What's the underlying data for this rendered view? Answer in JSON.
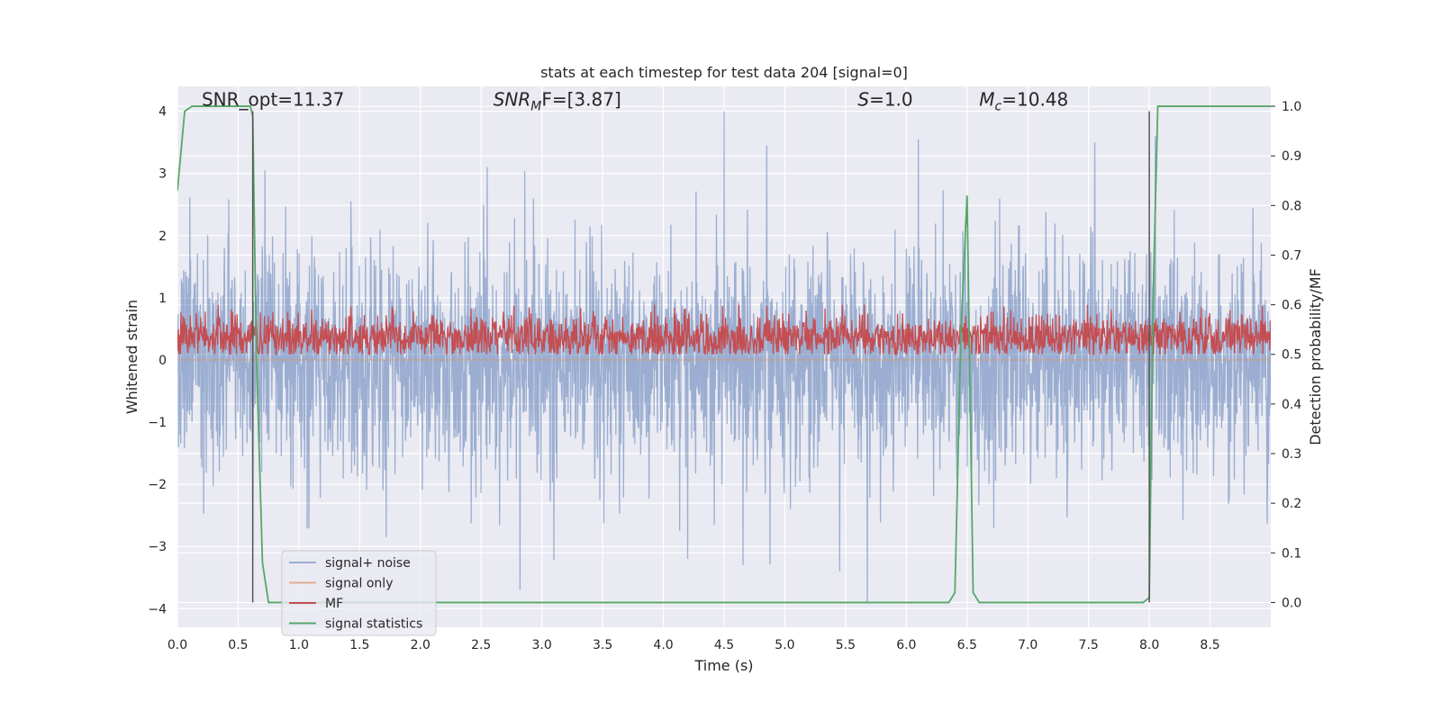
{
  "chart_data": {
    "type": "line",
    "title": "stats at each timestep for test data 204 [signal=0]",
    "xlabel": "Time (s)",
    "ylabel_left": "Whitened strain",
    "ylabel_right": "Detection probability/MF",
    "xlim": [
      0,
      9.0
    ],
    "ylim_left": [
      -4.3,
      4.4
    ],
    "ylim_right": [
      -0.05,
      1.04
    ],
    "x_ticks": [
      "0.0",
      "0.5",
      "1.0",
      "1.5",
      "2.0",
      "2.5",
      "3.0",
      "3.5",
      "4.0",
      "4.5",
      "5.0",
      "5.5",
      "6.0",
      "6.5",
      "7.0",
      "7.5",
      "8.0",
      "8.5"
    ],
    "y_ticks_left": [
      "−4",
      "−3",
      "−2",
      "−1",
      "0",
      "1",
      "2",
      "3",
      "4"
    ],
    "y_ticks_right": [
      "0.0",
      "0.1",
      "0.2",
      "0.3",
      "0.4",
      "0.5",
      "0.6",
      "0.7",
      "0.8",
      "0.9",
      "1.0"
    ],
    "grid": true,
    "legend_position": "lower-left",
    "annotations": [
      {
        "text": "SNR_opt=11.37",
        "x": 0.2,
        "y": 4.1
      },
      {
        "text": "SNR",
        "sub": "M",
        "tail": "F=[3.87]",
        "italic": true,
        "x": 2.6,
        "y": 4.1
      },
      {
        "text": "S",
        "tail": "=1.0",
        "italic": true,
        "x": 5.6,
        "y": 4.1
      },
      {
        "text": "M",
        "sub": "c",
        "tail": "=10.48",
        "italic": true,
        "x": 6.6,
        "y": 4.1
      }
    ],
    "series": [
      {
        "name": "signal+ noise",
        "color": "#4c72b0",
        "alpha": 0.5,
        "axis": "left",
        "kind": "noise",
        "amplitude_std": 0.9,
        "peaks": [
          {
            "x": 0.72,
            "y": 3.05
          },
          {
            "x": 2.55,
            "y": 3.1
          },
          {
            "x": 4.5,
            "y": 4.0
          },
          {
            "x": 4.85,
            "y": 3.45
          },
          {
            "x": 6.1,
            "y": 3.55
          },
          {
            "x": 7.55,
            "y": 3.5
          },
          {
            "x": 8.05,
            "y": 3.6
          },
          {
            "x": 5.68,
            "y": -3.9
          },
          {
            "x": 2.82,
            "y": -3.7
          },
          {
            "x": 0.62,
            "y": -3.0
          },
          {
            "x": 4.2,
            "y": -3.2
          },
          {
            "x": 5.45,
            "y": -3.4
          }
        ]
      },
      {
        "name": "signal only",
        "color": "#dd8452",
        "alpha": 0.6,
        "axis": "left",
        "kind": "flat",
        "value": 0
      },
      {
        "name": "MF",
        "color": "#c44e52",
        "alpha": 1.0,
        "axis": "right",
        "kind": "mf",
        "base": 0.5,
        "range": [
          0.5,
          0.6
        ]
      },
      {
        "name": "signal statistics",
        "color": "#55a868",
        "alpha": 1.0,
        "axis": "right",
        "kind": "step",
        "x": [
          0.0,
          0.06,
          0.12,
          0.6,
          0.62,
          0.65,
          0.7,
          0.75,
          0.8,
          6.35,
          6.4,
          6.45,
          6.5,
          6.55,
          6.6,
          6.65,
          7.95,
          8.0,
          8.03,
          8.07,
          8.1,
          9.0
        ],
        "y": [
          0.83,
          0.99,
          1.0,
          1.0,
          0.98,
          0.5,
          0.08,
          0.0,
          0.0,
          0.0,
          0.02,
          0.55,
          0.82,
          0.02,
          0.0,
          0.0,
          0.0,
          0.01,
          0.6,
          1.0,
          1.0,
          1.0
        ]
      }
    ],
    "vertical_markers": [
      {
        "x": 0.62,
        "y0": -3.9,
        "y1": 4.0,
        "color": "#555555"
      },
      {
        "x": 8.0,
        "y0": -3.9,
        "y1": 4.0,
        "color": "#555555"
      }
    ]
  }
}
